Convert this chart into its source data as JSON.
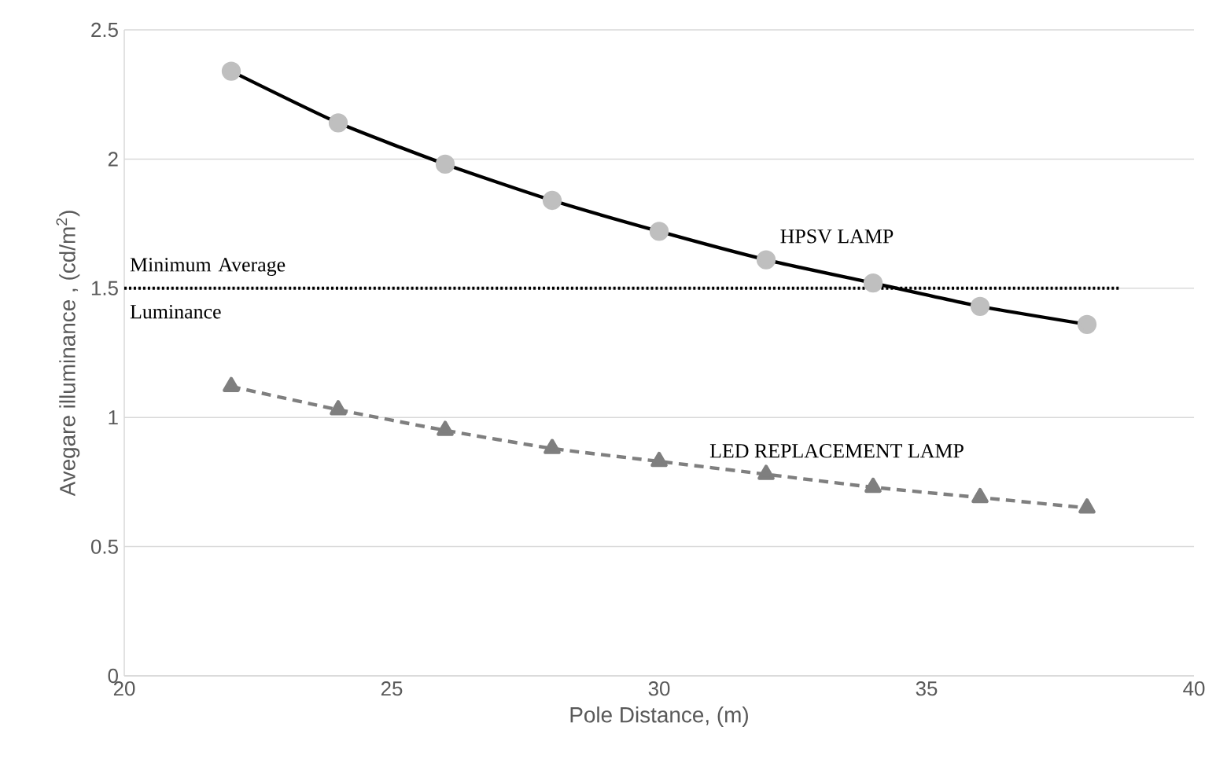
{
  "chart_data": {
    "type": "line",
    "xlabel": "Pole Distance, (m)",
    "ylabel": "Avegare illuminance , (cd/m$^{2}$)",
    "x": [
      22,
      24,
      26,
      28,
      30,
      32,
      34,
      36,
      38
    ],
    "series": [
      {
        "name": "HPSV LAMP",
        "color": "#000000",
        "values": [
          2.34,
          2.14,
          1.98,
          1.84,
          1.72,
          1.61,
          1.52,
          1.43,
          1.36
        ],
        "marker": "circle",
        "line_style": "solid"
      },
      {
        "name": "LED REPLACEMENT LAMP",
        "color": "#7f7f7f",
        "values": [
          1.12,
          1.03,
          0.95,
          0.88,
          0.83,
          0.78,
          0.73,
          0.69,
          0.65
        ],
        "marker": "triangle",
        "line_style": "dashed"
      }
    ],
    "ref_lines": [
      {
        "axis": "y",
        "value": 1.5,
        "label": "Minimum Average Luminance",
        "color": "#000000",
        "line_style": "dotted"
      }
    ],
    "xlim": [
      20,
      40
    ],
    "ylim": [
      0,
      2.5
    ],
    "xticks": [
      20,
      25,
      30,
      35,
      40
    ],
    "yticks": [
      0,
      0.5,
      1,
      1.5,
      2,
      2.5
    ],
    "grid": "y",
    "legend": false
  }
}
